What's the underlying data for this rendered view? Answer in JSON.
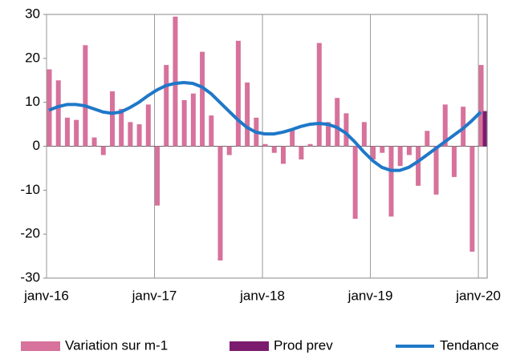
{
  "chart_data": {
    "type": "bar",
    "categories": [
      "janv-16",
      null,
      null,
      null,
      null,
      null,
      null,
      null,
      null,
      null,
      null,
      null,
      "janv-17",
      null,
      null,
      null,
      null,
      null,
      null,
      null,
      null,
      null,
      null,
      null,
      "janv-18",
      null,
      null,
      null,
      null,
      null,
      null,
      null,
      null,
      null,
      null,
      null,
      "janv-19",
      null,
      null,
      null,
      null,
      null,
      null,
      null,
      null,
      null,
      null,
      null,
      "janv-20"
    ],
    "series": [
      {
        "name": "Variation sur m-1",
        "type": "bar",
        "color": "#d6729b",
        "values": [
          17.5,
          15,
          6.5,
          6,
          23,
          2,
          -2,
          12.5,
          8.5,
          5.5,
          5,
          9.5,
          -13.5,
          18.5,
          29.5,
          10.5,
          12,
          21.5,
          7,
          -26,
          -2,
          24,
          14.5,
          6.5,
          0.5,
          -1.5,
          -4,
          4,
          -3,
          0.5,
          23.5,
          5.5,
          11,
          7.5,
          -16.5,
          5.5,
          -3,
          -1.5,
          -16,
          -4.5,
          -2,
          -9,
          3.5,
          -11,
          9.5,
          -7,
          9,
          -24,
          18.5
        ]
      },
      {
        "name": "Prod prev",
        "type": "bar",
        "color": "#7b1c6e",
        "values": [
          null,
          null,
          null,
          null,
          null,
          null,
          null,
          null,
          null,
          null,
          null,
          null,
          null,
          null,
          null,
          null,
          null,
          null,
          null,
          null,
          null,
          null,
          null,
          null,
          null,
          null,
          null,
          null,
          null,
          null,
          null,
          null,
          null,
          null,
          null,
          null,
          null,
          null,
          null,
          null,
          null,
          null,
          null,
          null,
          null,
          null,
          null,
          null,
          8
        ]
      },
      {
        "name": "Tendance",
        "type": "line",
        "color": "#1f78c8",
        "values": [
          8.2,
          9,
          9.5,
          9.5,
          9.2,
          8.5,
          7.8,
          7.5,
          7.8,
          8.8,
          10,
          11.5,
          12.8,
          13.8,
          14.3,
          14.5,
          14.3,
          13.5,
          12,
          10,
          8,
          6,
          4.3,
          3.2,
          2.8,
          2.8,
          3.2,
          3.8,
          4.5,
          5,
          5.2,
          5,
          4.3,
          3,
          1,
          -1.3,
          -3.3,
          -4.8,
          -5.5,
          -5.5,
          -4.8,
          -3.5,
          -2,
          -0.5,
          1,
          2.5,
          4,
          5.8,
          7.8
        ]
      }
    ],
    "ylim": [
      -30,
      30
    ],
    "yticks": [
      -30,
      -20,
      -10,
      0,
      10,
      20,
      30
    ],
    "grid": "x",
    "legend": "bottom"
  }
}
